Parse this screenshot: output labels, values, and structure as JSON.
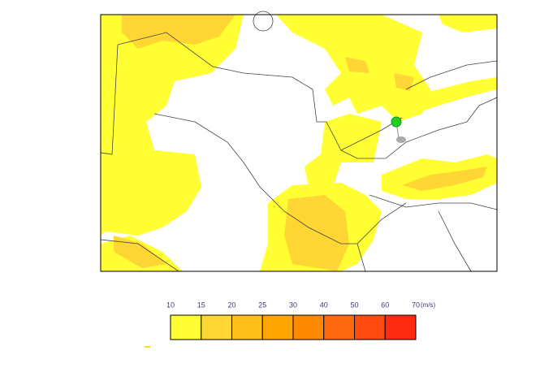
{
  "legend": {
    "ticks": [
      10,
      15,
      20,
      25,
      30,
      40,
      50,
      60,
      70
    ],
    "unit": "(m/s)",
    "colors": [
      "#ffff33",
      "#ffd633",
      "#ffbf1a",
      "#ffa500",
      "#ff8a00",
      "#ff6a10",
      "#ff4a10",
      "#ff2a10"
    ]
  }
}
